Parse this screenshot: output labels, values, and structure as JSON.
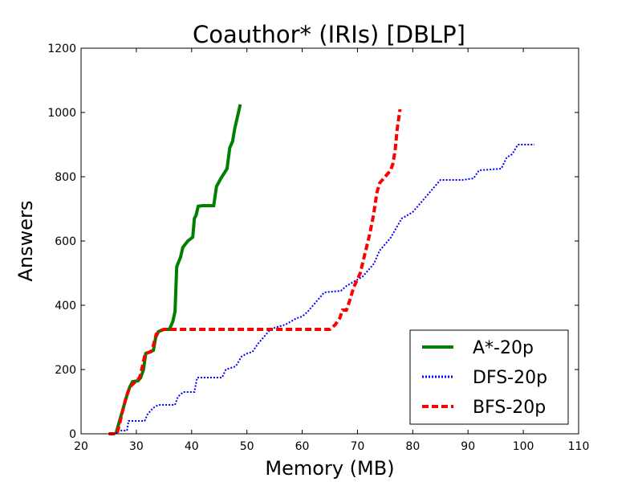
{
  "chart_data": {
    "type": "line",
    "title": "Coauthor* (IRIs) [DBLP]",
    "xlabel": "Memory (MB)",
    "ylabel": "Answers",
    "xlim": [
      20,
      110
    ],
    "ylim": [
      0,
      1200
    ],
    "xticks": [
      "20",
      "30",
      "40",
      "50",
      "60",
      "70",
      "80",
      "90",
      "100",
      "110"
    ],
    "yticks": [
      "0",
      "200",
      "400",
      "600",
      "800",
      "1000",
      "1200"
    ],
    "grid": false,
    "legend_position": "lower-right",
    "series": [
      {
        "name": "A*-20p",
        "color": "#008000",
        "style": "solid",
        "points": [
          [
            26.3,
            0
          ],
          [
            26.8,
            30
          ],
          [
            27.3,
            60
          ],
          [
            27.8,
            90
          ],
          [
            28.3,
            120
          ],
          [
            28.8,
            145
          ],
          [
            29.3,
            162
          ],
          [
            30.3,
            165
          ],
          [
            30.8,
            175
          ],
          [
            31.3,
            200
          ],
          [
            31.7,
            250
          ],
          [
            32.5,
            255
          ],
          [
            33.1,
            260
          ],
          [
            33.5,
            300
          ],
          [
            34,
            318
          ],
          [
            35,
            325
          ],
          [
            36,
            325
          ],
          [
            36.6,
            350
          ],
          [
            37,
            380
          ],
          [
            37.3,
            520
          ],
          [
            38,
            550
          ],
          [
            38.4,
            580
          ],
          [
            39.3,
            600
          ],
          [
            40.2,
            612
          ],
          [
            40.5,
            670
          ],
          [
            40.8,
            680
          ],
          [
            41.2,
            708
          ],
          [
            42,
            710
          ],
          [
            44,
            710
          ],
          [
            44.5,
            770
          ],
          [
            45.3,
            795
          ],
          [
            46.4,
            825
          ],
          [
            46.9,
            890
          ],
          [
            47.4,
            910
          ],
          [
            47.8,
            950
          ],
          [
            48.2,
            980
          ],
          [
            48.8,
            1025
          ]
        ]
      },
      {
        "name": "DFS-20p",
        "color": "#0000ff",
        "style": "dotted",
        "points": [
          [
            26.4,
            0
          ],
          [
            26.6,
            10
          ],
          [
            28.3,
            10
          ],
          [
            28.6,
            40
          ],
          [
            31.5,
            40
          ],
          [
            32,
            60
          ],
          [
            33,
            80
          ],
          [
            34,
            90
          ],
          [
            37,
            90
          ],
          [
            37.5,
            115
          ],
          [
            38.5,
            130
          ],
          [
            40.5,
            130
          ],
          [
            41,
            175
          ],
          [
            45.5,
            175
          ],
          [
            46.2,
            200
          ],
          [
            48,
            210
          ],
          [
            49,
            240
          ],
          [
            50,
            250
          ],
          [
            51,
            255
          ],
          [
            52,
            280
          ],
          [
            53,
            300
          ],
          [
            54,
            320
          ],
          [
            55,
            330
          ],
          [
            56,
            335
          ],
          [
            57,
            340
          ],
          [
            58,
            350
          ],
          [
            59,
            360
          ],
          [
            60,
            365
          ],
          [
            61,
            380
          ],
          [
            62,
            400
          ],
          [
            63,
            420
          ],
          [
            64,
            440
          ],
          [
            67,
            445
          ],
          [
            68,
            460
          ],
          [
            69,
            470
          ],
          [
            70,
            480
          ],
          [
            71,
            490
          ],
          [
            72,
            510
          ],
          [
            73,
            530
          ],
          [
            74,
            570
          ],
          [
            75,
            590
          ],
          [
            76,
            610
          ],
          [
            77,
            640
          ],
          [
            78,
            670
          ],
          [
            79,
            680
          ],
          [
            80,
            690
          ],
          [
            81,
            710
          ],
          [
            82,
            730
          ],
          [
            83,
            750
          ],
          [
            84,
            770
          ],
          [
            85,
            790
          ],
          [
            89,
            790
          ],
          [
            91,
            795
          ],
          [
            92,
            820
          ],
          [
            96,
            825
          ],
          [
            97,
            860
          ],
          [
            98,
            870
          ],
          [
            99,
            900
          ],
          [
            102,
            900
          ]
        ]
      },
      {
        "name": "BFS-20p",
        "color": "#ff0000",
        "style": "dashed",
        "points": [
          [
            25,
            0
          ],
          [
            26.5,
            0
          ],
          [
            27.1,
            40
          ],
          [
            27.5,
            70
          ],
          [
            28.1,
            110
          ],
          [
            28.6,
            135
          ],
          [
            29.1,
            150
          ],
          [
            30,
            165
          ],
          [
            30.6,
            175
          ],
          [
            31.1,
            210
          ],
          [
            31.6,
            250
          ],
          [
            32.6,
            255
          ],
          [
            33,
            270
          ],
          [
            33.6,
            310
          ],
          [
            34.5,
            322
          ],
          [
            35,
            325
          ],
          [
            65,
            325
          ],
          [
            66,
            340
          ],
          [
            66.8,
            360
          ],
          [
            67.3,
            385
          ],
          [
            68,
            385
          ],
          [
            68.7,
            420
          ],
          [
            69.3,
            455
          ],
          [
            70.5,
            500
          ],
          [
            71.2,
            550
          ],
          [
            72.2,
            620
          ],
          [
            72.9,
            680
          ],
          [
            73.5,
            750
          ],
          [
            74,
            780
          ],
          [
            75,
            800
          ],
          [
            76,
            820
          ],
          [
            76.4,
            840
          ],
          [
            76.8,
            880
          ],
          [
            77.2,
            950
          ],
          [
            77.7,
            1010
          ]
        ]
      }
    ]
  }
}
